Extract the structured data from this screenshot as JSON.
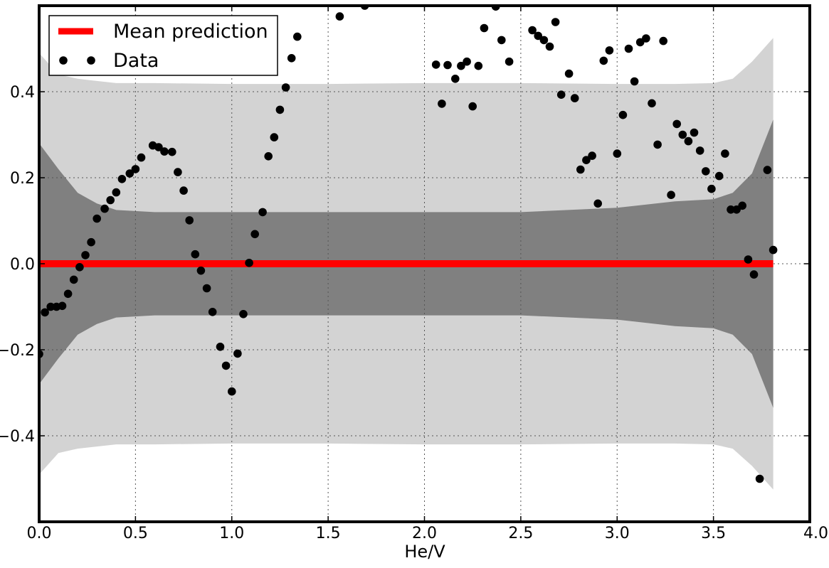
{
  "chart_data": {
    "type": "scatter",
    "title": "",
    "xlabel": "He/V",
    "ylabel": "",
    "xlim": [
      0.0,
      4.0
    ],
    "ylim": [
      -0.6,
      0.6
    ],
    "grid": true,
    "legend_position": "top-left",
    "x_ticks": [
      0.0,
      0.5,
      1.0,
      1.5,
      2.0,
      2.5,
      3.0,
      3.5,
      4.0
    ],
    "x_tick_labels": [
      "0.0",
      "0.5",
      "1.0",
      "1.5",
      "2.0",
      "2.5",
      "3.0",
      "3.5",
      "4.0"
    ],
    "y_ticks": [
      -0.4,
      -0.2,
      0.0,
      0.2,
      0.4
    ],
    "y_tick_labels": [
      "−0.4",
      "−0.2",
      "0.0",
      "0.2",
      "0.4"
    ],
    "legend": [
      {
        "label": "Mean prediction",
        "kind": "line",
        "color": "#ff0000"
      },
      {
        "label": "Data",
        "kind": "marker",
        "color": "#000000"
      }
    ],
    "series": [
      {
        "name": "Mean prediction",
        "kind": "line",
        "color": "#ff0000",
        "x": [
          0.0,
          3.81
        ],
        "y": [
          0.0,
          0.0
        ]
      },
      {
        "name": "Data",
        "kind": "scatter",
        "color": "#000000",
        "points": [
          [
            0.0,
            -0.21
          ],
          [
            0.03,
            -0.113
          ],
          [
            0.06,
            -0.1
          ],
          [
            0.09,
            -0.1
          ],
          [
            0.12,
            -0.098
          ],
          [
            0.15,
            -0.07
          ],
          [
            0.18,
            -0.037
          ],
          [
            0.21,
            -0.008
          ],
          [
            0.24,
            0.02
          ],
          [
            0.27,
            0.05
          ],
          [
            0.3,
            0.105
          ],
          [
            0.34,
            0.128
          ],
          [
            0.37,
            0.148
          ],
          [
            0.4,
            0.166
          ],
          [
            0.43,
            0.197
          ],
          [
            0.47,
            0.21
          ],
          [
            0.5,
            0.22
          ],
          [
            0.53,
            0.247
          ],
          [
            0.59,
            0.275
          ],
          [
            0.62,
            0.271
          ],
          [
            0.65,
            0.261
          ],
          [
            0.69,
            0.26
          ],
          [
            0.72,
            0.213
          ],
          [
            0.75,
            0.17
          ],
          [
            0.78,
            0.101
          ],
          [
            0.81,
            0.022
          ],
          [
            0.84,
            -0.016
          ],
          [
            0.87,
            -0.057
          ],
          [
            0.9,
            -0.112
          ],
          [
            0.94,
            -0.193
          ],
          [
            0.97,
            -0.237
          ],
          [
            1.0,
            -0.297
          ],
          [
            1.03,
            -0.209
          ],
          [
            1.06,
            -0.117
          ],
          [
            1.09,
            0.002
          ],
          [
            1.12,
            0.069
          ],
          [
            1.16,
            0.12
          ],
          [
            1.19,
            0.25
          ],
          [
            1.22,
            0.294
          ],
          [
            1.25,
            0.358
          ],
          [
            1.28,
            0.41
          ],
          [
            1.31,
            0.478
          ],
          [
            1.34,
            0.528
          ],
          [
            1.56,
            0.575
          ],
          [
            1.69,
            0.6
          ],
          [
            2.06,
            0.463
          ],
          [
            2.09,
            0.372
          ],
          [
            2.12,
            0.462
          ],
          [
            2.16,
            0.43
          ],
          [
            2.19,
            0.46
          ],
          [
            2.22,
            0.47
          ],
          [
            2.25,
            0.366
          ],
          [
            2.28,
            0.46
          ],
          [
            2.31,
            0.548
          ],
          [
            2.37,
            0.598
          ],
          [
            2.4,
            0.52
          ],
          [
            2.44,
            0.47
          ],
          [
            2.56,
            0.543
          ],
          [
            2.59,
            0.53
          ],
          [
            2.62,
            0.52
          ],
          [
            2.65,
            0.505
          ],
          [
            2.68,
            0.562
          ],
          [
            2.71,
            0.393
          ],
          [
            2.75,
            0.442
          ],
          [
            2.78,
            0.385
          ],
          [
            2.81,
            0.219
          ],
          [
            2.84,
            0.241
          ],
          [
            2.87,
            0.251
          ],
          [
            2.9,
            0.14
          ],
          [
            2.93,
            0.472
          ],
          [
            2.96,
            0.496
          ],
          [
            3.0,
            0.256
          ],
          [
            3.03,
            0.346
          ],
          [
            3.06,
            0.5
          ],
          [
            3.09,
            0.424
          ],
          [
            3.12,
            0.515
          ],
          [
            3.15,
            0.524
          ],
          [
            3.18,
            0.373
          ],
          [
            3.21,
            0.277
          ],
          [
            3.24,
            0.518
          ],
          [
            3.28,
            0.16
          ],
          [
            3.31,
            0.325
          ],
          [
            3.34,
            0.3
          ],
          [
            3.37,
            0.285
          ],
          [
            3.4,
            0.305
          ],
          [
            3.43,
            0.263
          ],
          [
            3.46,
            0.215
          ],
          [
            3.49,
            0.174
          ],
          [
            3.53,
            0.204
          ],
          [
            3.56,
            0.256
          ],
          [
            3.59,
            0.126
          ],
          [
            3.62,
            0.126
          ],
          [
            3.65,
            0.135
          ],
          [
            3.68,
            0.01
          ],
          [
            3.71,
            -0.025
          ],
          [
            3.74,
            -0.5
          ],
          [
            3.78,
            0.218
          ],
          [
            3.81,
            0.032
          ]
        ]
      }
    ],
    "bands": [
      {
        "color": "#d3d3d3",
        "x": [
          0.0,
          0.1,
          0.2,
          0.3,
          0.4,
          0.6,
          1.0,
          1.5,
          2.0,
          2.5,
          3.0,
          3.3,
          3.5,
          3.6,
          3.7,
          3.81
        ],
        "upper": [
          0.49,
          0.44,
          0.43,
          0.425,
          0.42,
          0.42,
          0.418,
          0.418,
          0.42,
          0.42,
          0.418,
          0.418,
          0.42,
          0.43,
          0.47,
          0.525
        ],
        "lower": [
          -0.49,
          -0.44,
          -0.43,
          -0.425,
          -0.42,
          -0.42,
          -0.418,
          -0.418,
          -0.42,
          -0.42,
          -0.418,
          -0.418,
          -0.42,
          -0.43,
          -0.47,
          -0.525
        ]
      },
      {
        "color": "#808080",
        "x": [
          0.0,
          0.1,
          0.2,
          0.3,
          0.4,
          0.6,
          1.0,
          1.5,
          2.0,
          2.5,
          3.0,
          3.3,
          3.5,
          3.6,
          3.7,
          3.81
        ],
        "upper": [
          0.28,
          0.22,
          0.165,
          0.14,
          0.125,
          0.12,
          0.12,
          0.12,
          0.12,
          0.12,
          0.13,
          0.145,
          0.15,
          0.165,
          0.21,
          0.335
        ],
        "lower": [
          -0.28,
          -0.22,
          -0.165,
          -0.14,
          -0.125,
          -0.12,
          -0.12,
          -0.12,
          -0.12,
          -0.12,
          -0.13,
          -0.145,
          -0.15,
          -0.165,
          -0.21,
          -0.335
        ]
      }
    ]
  }
}
